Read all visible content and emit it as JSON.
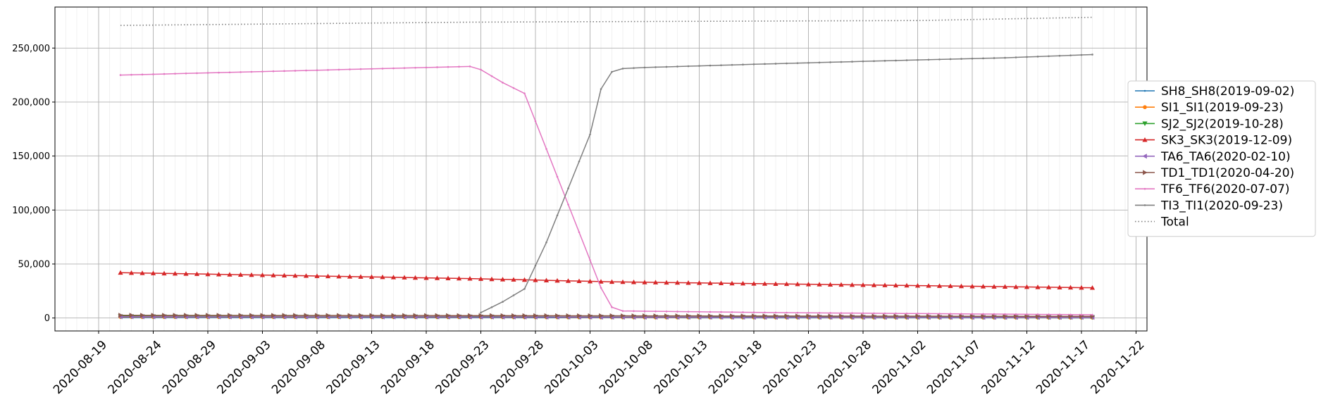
{
  "chart_data": {
    "type": "line",
    "title": "",
    "xlabel": "",
    "ylabel": "",
    "x_start": "2020-08-21",
    "x_end": "2020-11-18",
    "xlim": [
      "2020-08-15",
      "2020-11-23"
    ],
    "ylim": [
      -12000,
      288000
    ],
    "x_ticks": [
      "2020-08-19",
      "2020-08-24",
      "2020-08-29",
      "2020-09-03",
      "2020-09-08",
      "2020-09-13",
      "2020-09-18",
      "2020-09-23",
      "2020-09-28",
      "2020-10-03",
      "2020-10-08",
      "2020-10-13",
      "2020-10-18",
      "2020-10-23",
      "2020-10-28",
      "2020-11-02",
      "2020-11-07",
      "2020-11-12",
      "2020-11-17",
      "2020-11-22"
    ],
    "y_ticks": [
      0,
      50000,
      100000,
      150000,
      200000,
      250000
    ],
    "y_tick_labels": [
      "0",
      "50,000",
      "100,000",
      "150,000",
      "200,000",
      "250,000"
    ],
    "grid": true,
    "legend_position": "right",
    "series": [
      {
        "name": "SH8_SH8(2019-09-02)",
        "color": "#1f77b4",
        "marker": "point",
        "dashed": false,
        "points": [
          [
            "2020-08-21",
            500
          ],
          [
            "2020-09-22",
            300
          ],
          [
            "2020-10-05",
            200
          ],
          [
            "2020-11-18",
            100
          ]
        ]
      },
      {
        "name": "SI1_SI1(2019-09-23)",
        "color": "#ff7f0e",
        "marker": "circle",
        "dashed": false,
        "points": [
          [
            "2020-08-21",
            1000
          ],
          [
            "2020-09-22",
            800
          ],
          [
            "2020-10-05",
            600
          ],
          [
            "2020-11-18",
            400
          ]
        ]
      },
      {
        "name": "SJ2_SJ2(2019-10-28)",
        "color": "#2ca02c",
        "marker": "triangle-down",
        "dashed": false,
        "points": [
          [
            "2020-08-21",
            1500
          ],
          [
            "2020-09-22",
            1200
          ],
          [
            "2020-10-05",
            1000
          ],
          [
            "2020-11-18",
            700
          ]
        ]
      },
      {
        "name": "SK3_SK3(2019-12-09)",
        "color": "#d62728",
        "marker": "triangle-up",
        "dashed": false,
        "points": [
          [
            "2020-08-21",
            42000
          ],
          [
            "2020-09-22",
            36500
          ],
          [
            "2020-10-05",
            33500
          ],
          [
            "2020-11-18",
            28000
          ]
        ]
      },
      {
        "name": "TA6_TA6(2020-02-10)",
        "color": "#9467bd",
        "marker": "triangle-left",
        "dashed": false,
        "points": [
          [
            "2020-08-21",
            1200
          ],
          [
            "2020-09-22",
            1000
          ],
          [
            "2020-10-05",
            800
          ],
          [
            "2020-11-18",
            600
          ]
        ]
      },
      {
        "name": "TD1_TD1(2020-04-20)",
        "color": "#8c564b",
        "marker": "triangle-right",
        "dashed": false,
        "points": [
          [
            "2020-08-21",
            2500
          ],
          [
            "2020-09-22",
            2200
          ],
          [
            "2020-10-05",
            2000
          ],
          [
            "2020-11-18",
            1500
          ]
        ]
      },
      {
        "name": "TF6_TF6(2020-07-07)",
        "color": "#e377c2",
        "marker": "point",
        "dashed": false,
        "points": [
          [
            "2020-08-21",
            225000
          ],
          [
            "2020-09-22",
            233000
          ],
          [
            "2020-09-23",
            230000
          ],
          [
            "2020-09-24",
            224000
          ],
          [
            "2020-09-25",
            218000
          ],
          [
            "2020-09-26",
            213000
          ],
          [
            "2020-09-27",
            208000
          ],
          [
            "2020-10-04",
            28000
          ],
          [
            "2020-10-05",
            10000
          ],
          [
            "2020-10-06",
            6500
          ],
          [
            "2020-10-20",
            5000
          ],
          [
            "2020-11-18",
            3000
          ]
        ]
      },
      {
        "name": "TI3_TI1(2020-09-23)",
        "color": "#7f7f7f",
        "marker": "point",
        "dashed": false,
        "points": [
          [
            "2020-09-23",
            5000
          ],
          [
            "2020-09-25",
            15000
          ],
          [
            "2020-09-27",
            27000
          ],
          [
            "2020-09-29",
            70000
          ],
          [
            "2020-10-01",
            120000
          ],
          [
            "2020-10-03",
            170000
          ],
          [
            "2020-10-04",
            212000
          ],
          [
            "2020-10-05",
            228000
          ],
          [
            "2020-10-06",
            231000
          ],
          [
            "2020-10-08",
            232000
          ],
          [
            "2020-10-18",
            235000
          ],
          [
            "2020-11-02",
            239000
          ],
          [
            "2020-11-10",
            241000
          ],
          [
            "2020-11-18",
            244000
          ]
        ]
      },
      {
        "name": "Total",
        "color": "#7f7f7f",
        "marker": "none",
        "dashed": true,
        "points": [
          [
            "2020-08-21",
            271000
          ],
          [
            "2020-09-22",
            274000
          ],
          [
            "2020-10-05",
            274500
          ],
          [
            "2020-11-02",
            275500
          ],
          [
            "2020-11-18",
            278500
          ]
        ]
      }
    ]
  }
}
